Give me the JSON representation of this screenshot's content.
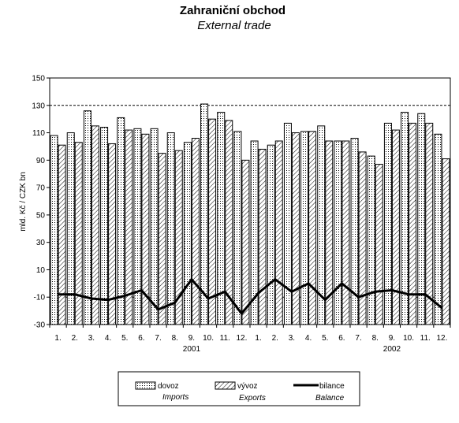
{
  "chart_data": {
    "type": "bar",
    "title": "Zahraniční obchod",
    "subtitle": "External trade",
    "ylabel": "mld. Kč / CZK bn",
    "ylim": [
      -30,
      150
    ],
    "yticks": [
      -30,
      -10,
      10,
      30,
      50,
      70,
      90,
      110,
      130,
      150
    ],
    "dashed_gridlines": [
      -10,
      130
    ],
    "categories": [
      "1.",
      "2.",
      "3.",
      "4.",
      "5.",
      "6.",
      "7.",
      "8.",
      "9.",
      "10.",
      "11.",
      "12.",
      "1.",
      "2.",
      "3.",
      "4.",
      "5.",
      "6.",
      "7.",
      "8.",
      "9.",
      "10.",
      "11.",
      "12."
    ],
    "years": [
      {
        "label": "2001",
        "under_category": 9
      },
      {
        "label": "2002",
        "under_category": 21
      }
    ],
    "series": [
      {
        "name": "dovoz",
        "name_en": "Imports",
        "kind": "bar",
        "pattern": "dotted",
        "values": [
          108,
          110,
          126,
          114,
          121,
          113,
          113,
          110,
          103,
          131,
          125,
          111,
          104,
          101,
          117,
          111,
          115,
          104,
          106,
          93,
          117,
          125,
          124,
          109
        ]
      },
      {
        "name": "vývoz",
        "name_en": "Exports",
        "kind": "bar",
        "pattern": "hatched",
        "values": [
          101,
          103,
          115,
          102,
          112,
          109,
          95,
          97,
          106,
          120,
          119,
          90,
          98,
          104,
          110,
          111,
          104,
          104,
          96,
          87,
          112,
          117,
          117,
          91
        ]
      },
      {
        "name": "bilance",
        "name_en": "Balance",
        "kind": "line",
        "values": [
          -8,
          -8,
          -11,
          -12,
          -9,
          -5,
          -19,
          -14,
          3,
          -11,
          -6,
          -22,
          -7,
          3,
          -6,
          0,
          -12,
          0,
          -10,
          -6,
          -5,
          -8,
          -8,
          -18
        ]
      }
    ],
    "legend_position": "bottom"
  }
}
